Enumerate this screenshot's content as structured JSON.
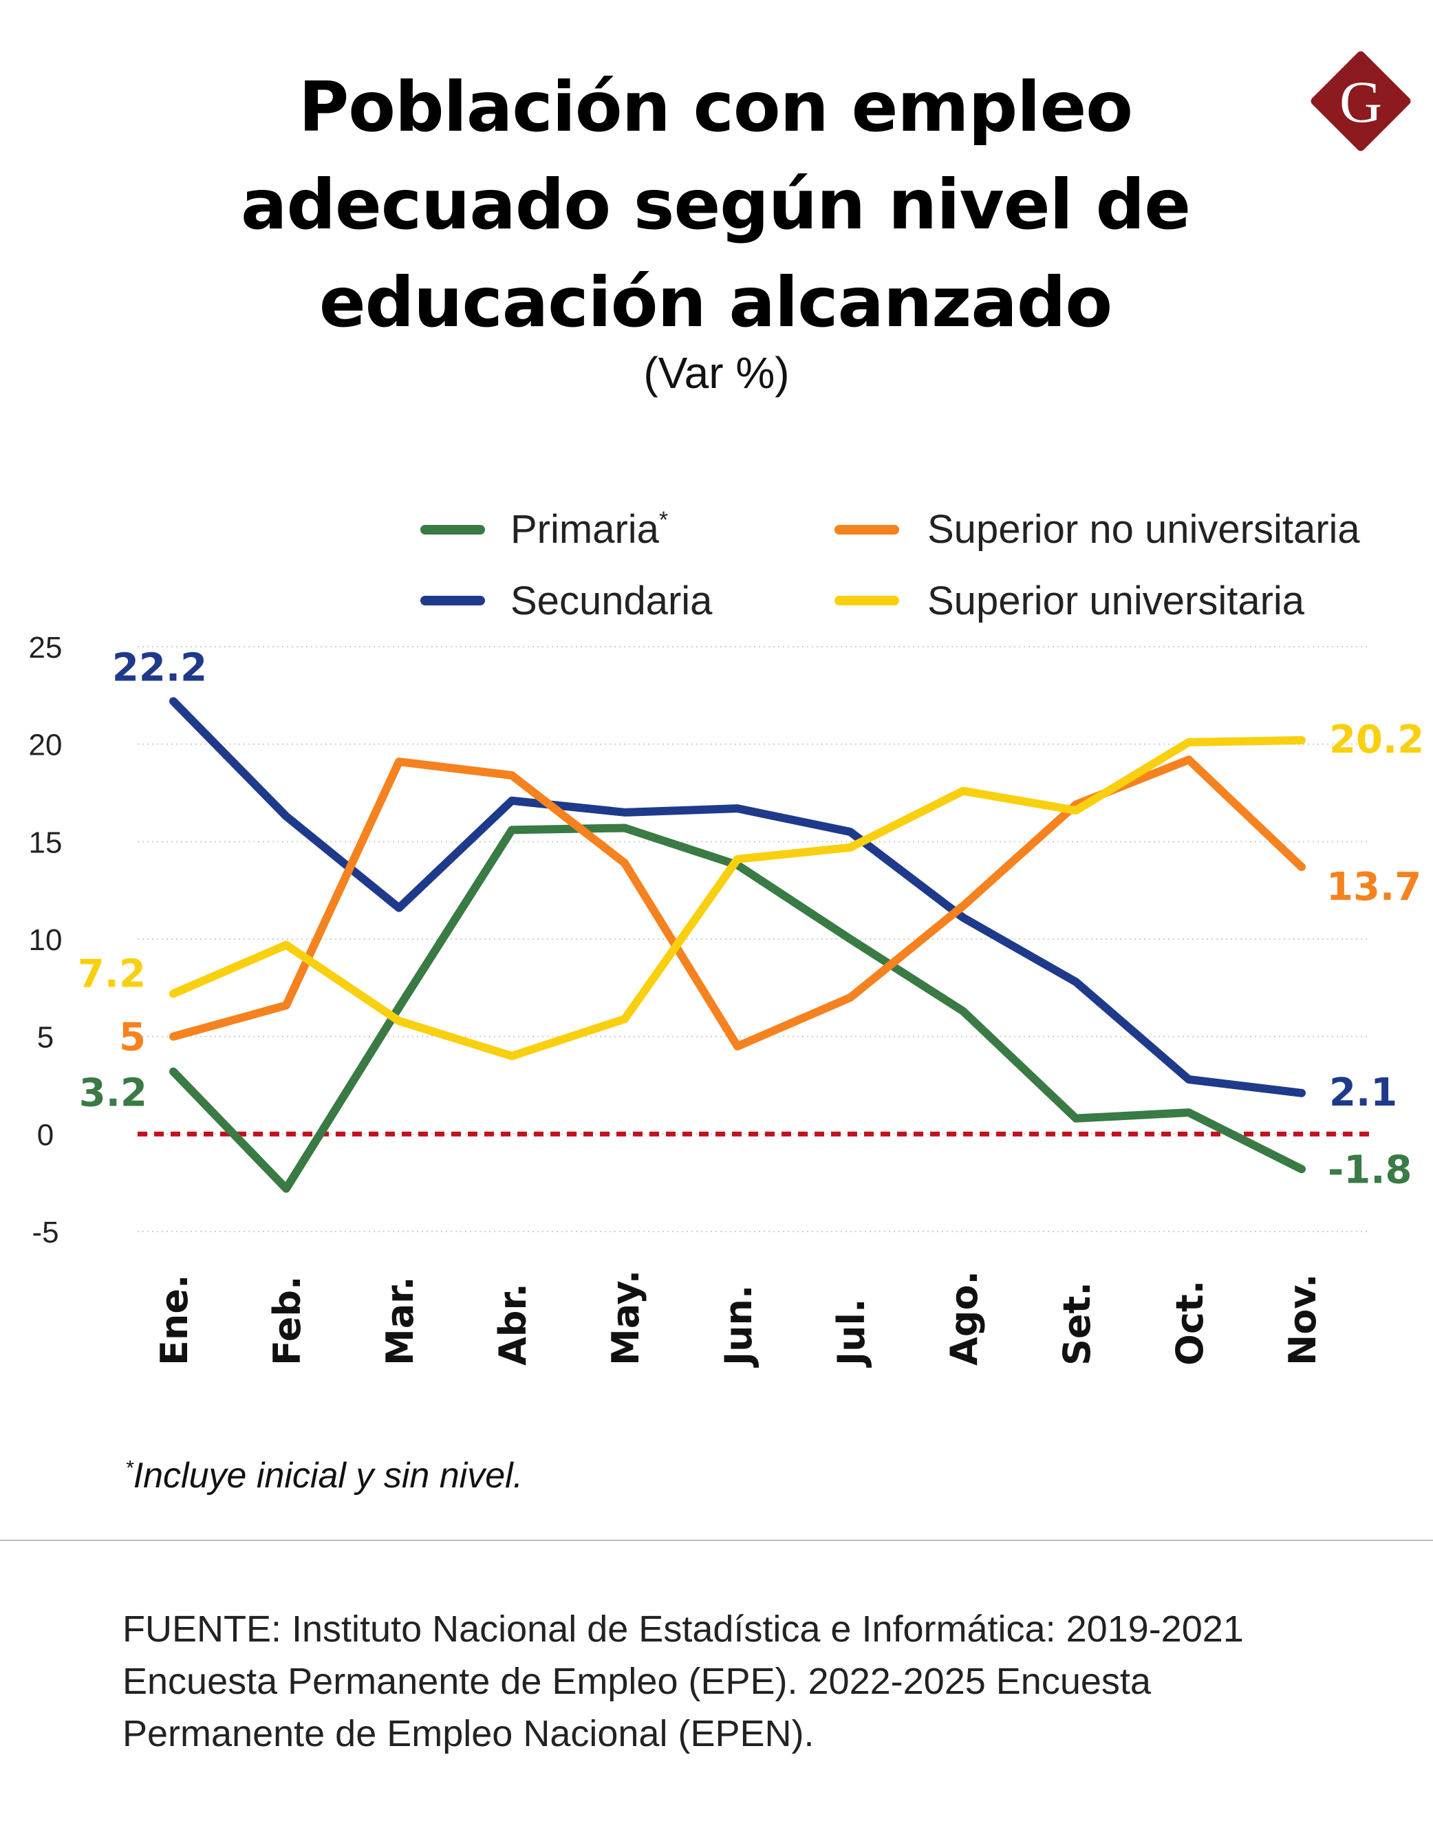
{
  "header": {
    "title_lines": [
      "Población con empleo",
      "adecuado según nivel de",
      "educación alcanzado"
    ],
    "subtitle": "(Var %)",
    "logo_letter": "G"
  },
  "colors": {
    "primaria": "#3a7a45",
    "secundaria": "#1f3a8a",
    "superior_no_universitaria": "#f5821f",
    "superior_universitaria": "#f9d00f",
    "zero_line": "#c1121f",
    "logo": "#8c1a1f"
  },
  "chart_data": {
    "type": "line",
    "title": "Población con empleo adecuado según nivel de educación alcanzado",
    "subtitle": "(Var %)",
    "xlabel": "",
    "ylabel": "",
    "ylim": [
      -5,
      25
    ],
    "yticks": [
      25,
      20,
      15,
      10,
      5,
      0,
      -5
    ],
    "ytick_labels": [
      "25",
      "20",
      "15",
      "10",
      "5",
      "0",
      "-5"
    ],
    "grid": "horizontal dotted",
    "legend_position": "top-right",
    "categories": [
      "Ene.",
      "Feb.",
      "Mar.",
      "Abr.",
      "May.",
      "Jun.",
      "Jul.",
      "Ago.",
      "Set.",
      "Oct.",
      "Nov."
    ],
    "series": [
      {
        "key": "primaria",
        "name": "Primaria",
        "name_suffix": "*",
        "color": "#3a7a45",
        "values": [
          3.2,
          -2.8,
          6.5,
          15.6,
          15.7,
          13.8,
          10.0,
          6.3,
          0.8,
          1.1,
          -1.8
        ],
        "start_label": "3.2",
        "end_label": "-1.8"
      },
      {
        "key": "secundaria",
        "name": "Secundaria",
        "color": "#1f3a8a",
        "values": [
          22.2,
          16.3,
          11.6,
          17.1,
          16.5,
          16.7,
          15.5,
          11.1,
          7.8,
          2.8,
          2.1
        ],
        "start_label": "22.2",
        "end_label": "2.1"
      },
      {
        "key": "superior_no_universitaria",
        "name": "Superior no universitaria",
        "color": "#f5821f",
        "values": [
          5.0,
          6.6,
          19.1,
          18.4,
          13.9,
          4.5,
          7.0,
          11.7,
          16.9,
          19.2,
          13.7
        ],
        "start_label": "5",
        "end_label": "13.7"
      },
      {
        "key": "superior_universitaria",
        "name": "Superior universitaria",
        "color": "#f9d00f",
        "values": [
          7.2,
          9.7,
          5.8,
          4.0,
          5.9,
          14.1,
          14.7,
          17.6,
          16.6,
          20.1,
          20.2
        ],
        "start_label": "7.2",
        "end_label": "20.2"
      }
    ],
    "reference_line": {
      "y": 0,
      "style": "dashed",
      "color": "#c1121f"
    }
  },
  "footnote": {
    "marker": "*",
    "text": "Incluye inicial y sin nivel."
  },
  "source": {
    "lines": [
      "FUENTE: Instituto Nacional de Estadística e Informática: 2019-2021",
      "Encuesta Permanente de Empleo (EPE). 2022-2025 Encuesta",
      "Permanente de Empleo Nacional (EPEN)."
    ]
  }
}
